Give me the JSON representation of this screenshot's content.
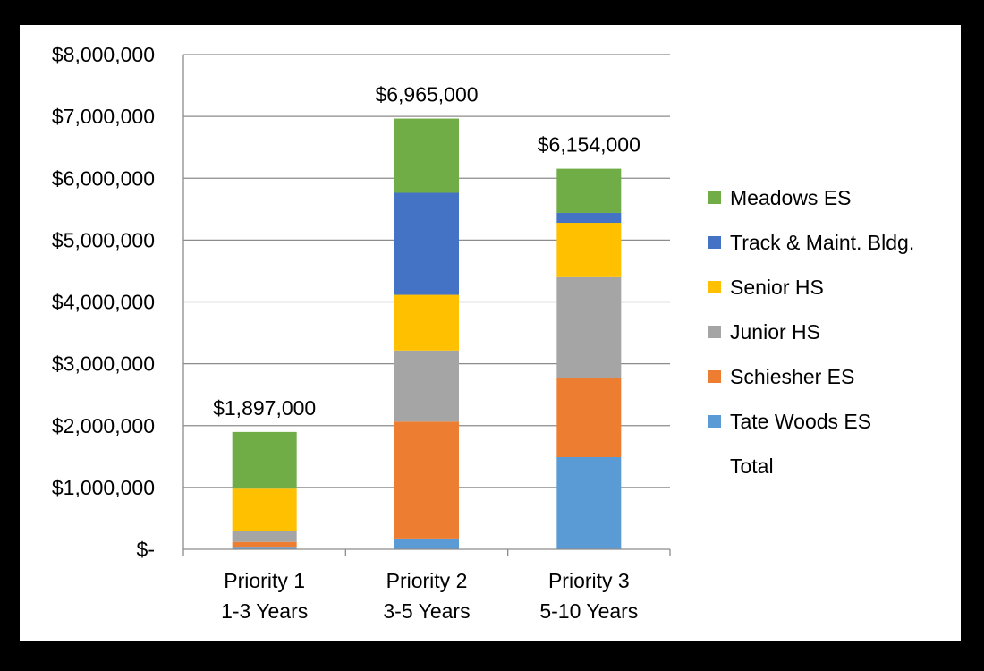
{
  "chart_data": {
    "type": "bar",
    "stacked": true,
    "categories": [
      [
        "Priority 1",
        "1-3 Years"
      ],
      [
        "Priority 2",
        "3-5 Years"
      ],
      [
        "Priority 3",
        "5-10 Years"
      ]
    ],
    "series": [
      {
        "name": "Tate Woods ES",
        "color": "#5B9BD5",
        "values": [
          40000,
          175000,
          1490000
        ]
      },
      {
        "name": "Schiesher ES",
        "color": "#ED7D31",
        "values": [
          80000,
          1890000,
          1280000
        ]
      },
      {
        "name": "Junior HS",
        "color": "#A5A5A5",
        "values": [
          170000,
          1150000,
          1630000
        ]
      },
      {
        "name": "Senior HS",
        "color": "#FFC000",
        "values": [
          690000,
          900000,
          880000
        ]
      },
      {
        "name": "Track & Maint. Bldg.",
        "color": "#4472C4",
        "values": [
          0,
          1650000,
          160000
        ]
      },
      {
        "name": "Meadows ES",
        "color": "#70AD47",
        "values": [
          917000,
          1200000,
          714000
        ]
      }
    ],
    "totals_series_name": "Total",
    "totals": [
      1897000,
      6965000,
      6154000
    ],
    "total_labels": [
      "$1,897,000",
      "$6,965,000",
      "$6,154,000"
    ],
    "y_ticks": [
      0,
      1000000,
      2000000,
      3000000,
      4000000,
      5000000,
      6000000,
      7000000,
      8000000
    ],
    "y_tick_labels": [
      "$-",
      "$1,000,000",
      "$2,000,000",
      "$3,000,000",
      "$4,000,000",
      "$5,000,000",
      "$6,000,000",
      "$7,000,000",
      "$8,000,000"
    ],
    "ylim": [
      0,
      8000000
    ],
    "grid": true,
    "legend_position": "right",
    "legend_order": [
      "Meadows ES",
      "Track & Maint. Bldg.",
      "Senior HS",
      "Junior HS",
      "Schiesher ES",
      "Tate Woods ES",
      "Total"
    ]
  }
}
